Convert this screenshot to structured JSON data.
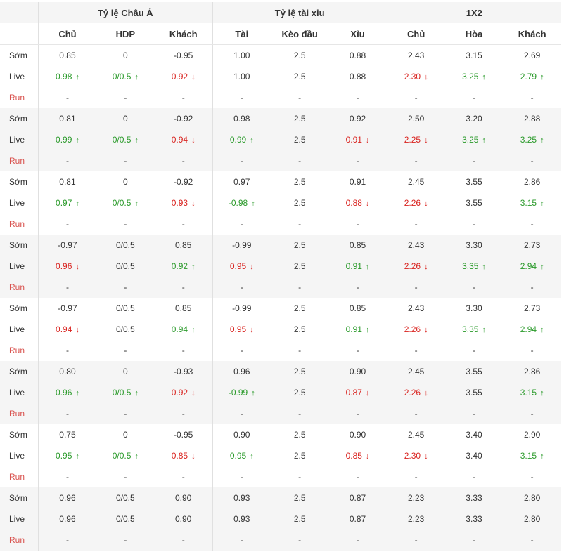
{
  "headers": {
    "group_asian": "Tỷ lệ Châu Á",
    "group_ou": "Tỷ lệ tài xiu",
    "group_1x2": "1X2",
    "cols": [
      "Chủ",
      "HDP",
      "Khách",
      "Tài",
      "Kèo đầu",
      "Xỉu",
      "Chủ",
      "Hòa",
      "Khách"
    ]
  },
  "row_labels": {
    "early": "Sớm",
    "live": "Live",
    "run": "Run"
  },
  "dash": "-",
  "colors": {
    "up": "#2a9a2a",
    "down": "#d9231f",
    "run_label": "#d9534f"
  },
  "groups": [
    {
      "early": [
        {
          "v": "0.85"
        },
        {
          "v": "0"
        },
        {
          "v": "-0.95"
        },
        {
          "v": "1.00"
        },
        {
          "v": "2.5"
        },
        {
          "v": "0.88"
        },
        {
          "v": "2.43"
        },
        {
          "v": "3.15"
        },
        {
          "v": "2.69"
        }
      ],
      "live": [
        {
          "v": "0.98",
          "t": "up"
        },
        {
          "v": "0/0.5",
          "t": "up"
        },
        {
          "v": "0.92",
          "t": "down"
        },
        {
          "v": "1.00"
        },
        {
          "v": "2.5"
        },
        {
          "v": "0.88"
        },
        {
          "v": "2.30",
          "t": "down"
        },
        {
          "v": "3.25",
          "t": "up"
        },
        {
          "v": "2.79",
          "t": "up"
        }
      ]
    },
    {
      "early": [
        {
          "v": "0.81"
        },
        {
          "v": "0"
        },
        {
          "v": "-0.92"
        },
        {
          "v": "0.98"
        },
        {
          "v": "2.5"
        },
        {
          "v": "0.92"
        },
        {
          "v": "2.50"
        },
        {
          "v": "3.20"
        },
        {
          "v": "2.88"
        }
      ],
      "live": [
        {
          "v": "0.99",
          "t": "up"
        },
        {
          "v": "0/0.5",
          "t": "up"
        },
        {
          "v": "0.94",
          "t": "down"
        },
        {
          "v": "0.99",
          "t": "up"
        },
        {
          "v": "2.5"
        },
        {
          "v": "0.91",
          "t": "down"
        },
        {
          "v": "2.25",
          "t": "down"
        },
        {
          "v": "3.25",
          "t": "up"
        },
        {
          "v": "3.25",
          "t": "up"
        }
      ]
    },
    {
      "early": [
        {
          "v": "0.81"
        },
        {
          "v": "0"
        },
        {
          "v": "-0.92"
        },
        {
          "v": "0.97"
        },
        {
          "v": "2.5"
        },
        {
          "v": "0.91"
        },
        {
          "v": "2.45"
        },
        {
          "v": "3.55"
        },
        {
          "v": "2.86"
        }
      ],
      "live": [
        {
          "v": "0.97",
          "t": "up"
        },
        {
          "v": "0/0.5",
          "t": "up"
        },
        {
          "v": "0.93",
          "t": "down"
        },
        {
          "v": "-0.98",
          "t": "up"
        },
        {
          "v": "2.5"
        },
        {
          "v": "0.88",
          "t": "down"
        },
        {
          "v": "2.26",
          "t": "down"
        },
        {
          "v": "3.55"
        },
        {
          "v": "3.15",
          "t": "up"
        }
      ]
    },
    {
      "early": [
        {
          "v": "-0.97"
        },
        {
          "v": "0/0.5"
        },
        {
          "v": "0.85"
        },
        {
          "v": "-0.99"
        },
        {
          "v": "2.5"
        },
        {
          "v": "0.85"
        },
        {
          "v": "2.43"
        },
        {
          "v": "3.30"
        },
        {
          "v": "2.73"
        }
      ],
      "live": [
        {
          "v": "0.96",
          "t": "down"
        },
        {
          "v": "0/0.5"
        },
        {
          "v": "0.92",
          "t": "up"
        },
        {
          "v": "0.95",
          "t": "down"
        },
        {
          "v": "2.5"
        },
        {
          "v": "0.91",
          "t": "up"
        },
        {
          "v": "2.26",
          "t": "down"
        },
        {
          "v": "3.35",
          "t": "up"
        },
        {
          "v": "2.94",
          "t": "up"
        }
      ]
    },
    {
      "early": [
        {
          "v": "-0.97"
        },
        {
          "v": "0/0.5"
        },
        {
          "v": "0.85"
        },
        {
          "v": "-0.99"
        },
        {
          "v": "2.5"
        },
        {
          "v": "0.85"
        },
        {
          "v": "2.43"
        },
        {
          "v": "3.30"
        },
        {
          "v": "2.73"
        }
      ],
      "live": [
        {
          "v": "0.94",
          "t": "down"
        },
        {
          "v": "0/0.5"
        },
        {
          "v": "0.94",
          "t": "up"
        },
        {
          "v": "0.95",
          "t": "down"
        },
        {
          "v": "2.5"
        },
        {
          "v": "0.91",
          "t": "up"
        },
        {
          "v": "2.26",
          "t": "down"
        },
        {
          "v": "3.35",
          "t": "up"
        },
        {
          "v": "2.94",
          "t": "up"
        }
      ]
    },
    {
      "early": [
        {
          "v": "0.80"
        },
        {
          "v": "0"
        },
        {
          "v": "-0.93"
        },
        {
          "v": "0.96"
        },
        {
          "v": "2.5"
        },
        {
          "v": "0.90"
        },
        {
          "v": "2.45"
        },
        {
          "v": "3.55"
        },
        {
          "v": "2.86"
        }
      ],
      "live": [
        {
          "v": "0.96",
          "t": "up"
        },
        {
          "v": "0/0.5",
          "t": "up"
        },
        {
          "v": "0.92",
          "t": "down"
        },
        {
          "v": "-0.99",
          "t": "up"
        },
        {
          "v": "2.5"
        },
        {
          "v": "0.87",
          "t": "down"
        },
        {
          "v": "2.26",
          "t": "down"
        },
        {
          "v": "3.55"
        },
        {
          "v": "3.15",
          "t": "up"
        }
      ]
    },
    {
      "early": [
        {
          "v": "0.75"
        },
        {
          "v": "0"
        },
        {
          "v": "-0.95"
        },
        {
          "v": "0.90"
        },
        {
          "v": "2.5"
        },
        {
          "v": "0.90"
        },
        {
          "v": "2.45"
        },
        {
          "v": "3.40"
        },
        {
          "v": "2.90"
        }
      ],
      "live": [
        {
          "v": "0.95",
          "t": "up"
        },
        {
          "v": "0/0.5",
          "t": "up"
        },
        {
          "v": "0.85",
          "t": "down"
        },
        {
          "v": "0.95",
          "t": "up"
        },
        {
          "v": "2.5"
        },
        {
          "v": "0.85",
          "t": "down"
        },
        {
          "v": "2.30",
          "t": "down"
        },
        {
          "v": "3.40"
        },
        {
          "v": "3.15",
          "t": "up"
        }
      ]
    },
    {
      "early": [
        {
          "v": "0.96"
        },
        {
          "v": "0/0.5"
        },
        {
          "v": "0.90"
        },
        {
          "v": "0.93"
        },
        {
          "v": "2.5"
        },
        {
          "v": "0.87"
        },
        {
          "v": "2.23"
        },
        {
          "v": "3.33"
        },
        {
          "v": "2.80"
        }
      ],
      "live": [
        {
          "v": "0.96"
        },
        {
          "v": "0/0.5"
        },
        {
          "v": "0.90"
        },
        {
          "v": "0.93"
        },
        {
          "v": "2.5"
        },
        {
          "v": "0.87"
        },
        {
          "v": "2.23"
        },
        {
          "v": "3.33"
        },
        {
          "v": "2.80"
        }
      ]
    }
  ]
}
